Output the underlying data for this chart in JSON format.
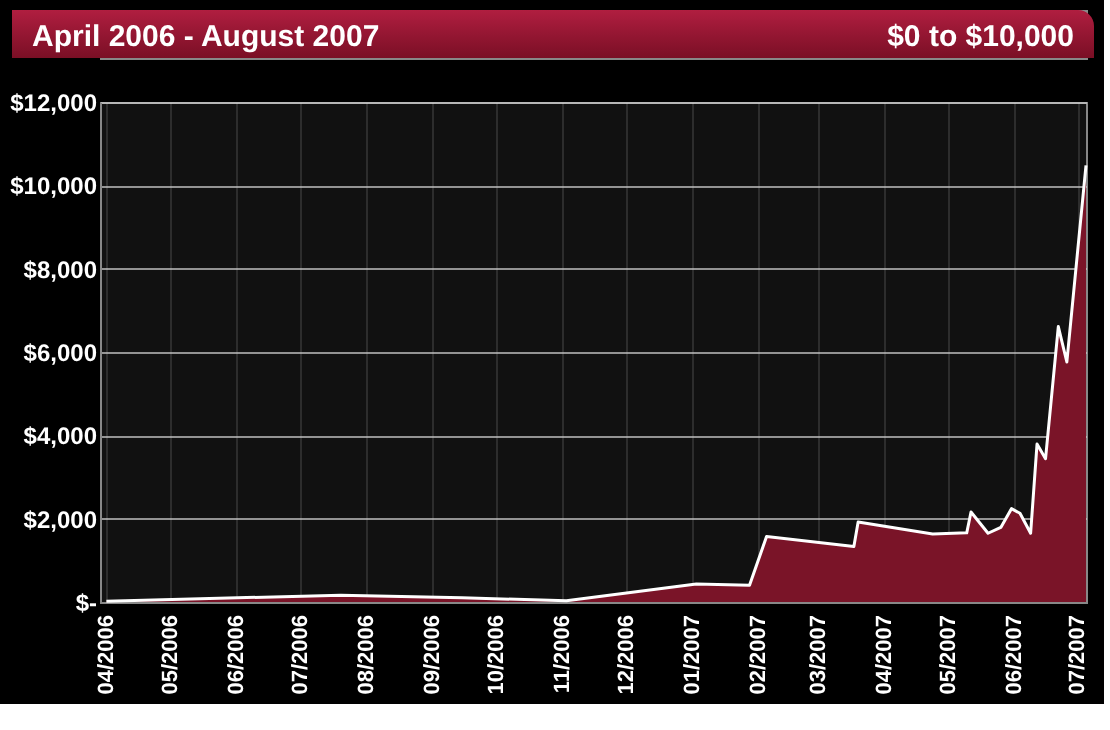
{
  "chart_data": {
    "type": "area",
    "title": "April 2006 - August 2007",
    "subtitle": "$0 to $10,000",
    "x": [
      "2006-04-01",
      "2006-05-15",
      "2006-07-20",
      "2006-09-15",
      "2006-11-03",
      "2007-01-03",
      "2007-01-28",
      "2007-02-05",
      "2007-03-18",
      "2007-03-20",
      "2007-04-24",
      "2007-05-10",
      "2007-05-12",
      "2007-05-20",
      "2007-05-26",
      "2007-05-31",
      "2007-06-04",
      "2007-06-09",
      "2007-06-12",
      "2007-06-16",
      "2007-06-22",
      "2007-06-26",
      "2007-07-05"
    ],
    "series": [
      {
        "color": "#7a1428",
        "values": [
          20,
          80,
          160,
          100,
          30,
          430,
          400,
          1570,
          1330,
          1920,
          1630,
          1660,
          2160,
          1650,
          1790,
          2240,
          2130,
          1650,
          3790,
          3440,
          6610,
          5760,
          10480
        ]
      }
    ],
    "xlim": [
      "2006-03-29",
      "2007-07-05"
    ],
    "xticks": [
      {
        "value": "2006-04-01",
        "label": "04/2006"
      },
      {
        "value": "2006-05-01",
        "label": "05/2006"
      },
      {
        "value": "2006-06-01",
        "label": "06/2006"
      },
      {
        "value": "2006-07-01",
        "label": "07/2006"
      },
      {
        "value": "2006-08-01",
        "label": "08/2006"
      },
      {
        "value": "2006-09-01",
        "label": "09/2006"
      },
      {
        "value": "2006-10-01",
        "label": "10/2006"
      },
      {
        "value": "2006-11-01",
        "label": "11/2006"
      },
      {
        "value": "2006-12-01",
        "label": "12/2006"
      },
      {
        "value": "2007-01-01",
        "label": "01/2007"
      },
      {
        "value": "2007-02-01",
        "label": "02/2007"
      },
      {
        "value": "2007-03-01",
        "label": "03/2007"
      },
      {
        "value": "2007-04-01",
        "label": "04/2007"
      },
      {
        "value": "2007-05-01",
        "label": "05/2007"
      },
      {
        "value": "2007-06-01",
        "label": "06/2007"
      },
      {
        "value": "2007-07-01",
        "label": "07/2007"
      }
    ],
    "ylim": [
      0,
      12000
    ],
    "yticks": [
      {
        "value": 0,
        "label": "$-"
      },
      {
        "value": 2000,
        "label": "$2,000"
      },
      {
        "value": 4000,
        "label": "$4,000"
      },
      {
        "value": 6000,
        "label": "$6,000"
      },
      {
        "value": 8000,
        "label": "$8,000"
      },
      {
        "value": 10000,
        "label": "$10,000"
      },
      {
        "value": 12000,
        "label": "$12,000"
      }
    ],
    "grid": true
  }
}
